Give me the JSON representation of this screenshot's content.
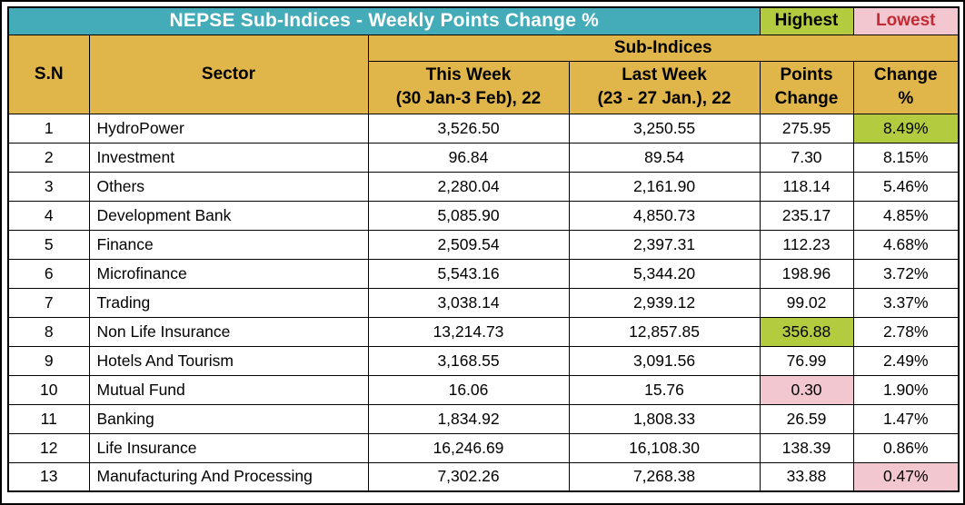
{
  "title": "NEPSE Sub-Indices - Weekly Points Change %",
  "legend": {
    "highest": "Highest",
    "lowest": "Lowest"
  },
  "colors": {
    "title_bg": "#44ACB8",
    "title_text": "#FFFFFF",
    "header_bg": "#E0B64A",
    "highest_bg": "#B2CB3F",
    "lowest_bg": "#F3C7CF",
    "lowest_text": "#C32A33",
    "border": "#000000"
  },
  "table": {
    "headers": {
      "sn": "S.N",
      "sector": "Sector",
      "sub_indices": "Sub-Indices",
      "this_week_line1": "This Week",
      "this_week_line2": "(30 Jan-3 Feb), 22",
      "last_week_line1": "Last Week",
      "last_week_line2": "(23 - 27 Jan.), 22",
      "points_line1": "Points",
      "points_line2": "Change",
      "change_line1": "Change",
      "change_line2": "%"
    },
    "rows": [
      {
        "sn": "1",
        "sector": "HydroPower",
        "this_week": "3,526.50",
        "last_week": "3,250.55",
        "points_change": "275.95",
        "change_pct": "8.49%",
        "highlights": {
          "change_pct": "highest"
        }
      },
      {
        "sn": "2",
        "sector": "Investment",
        "this_week": "96.84",
        "last_week": "89.54",
        "points_change": "7.30",
        "change_pct": "8.15%"
      },
      {
        "sn": "3",
        "sector": "Others",
        "this_week": "2,280.04",
        "last_week": "2,161.90",
        "points_change": "118.14",
        "change_pct": "5.46%"
      },
      {
        "sn": "4",
        "sector": "Development Bank",
        "this_week": "5,085.90",
        "last_week": "4,850.73",
        "points_change": "235.17",
        "change_pct": "4.85%"
      },
      {
        "sn": "5",
        "sector": "Finance",
        "this_week": "2,509.54",
        "last_week": "2,397.31",
        "points_change": "112.23",
        "change_pct": "4.68%"
      },
      {
        "sn": "6",
        "sector": "Microfinance",
        "this_week": "5,543.16",
        "last_week": "5,344.20",
        "points_change": "198.96",
        "change_pct": "3.72%"
      },
      {
        "sn": "7",
        "sector": "Trading",
        "this_week": "3,038.14",
        "last_week": "2,939.12",
        "points_change": "99.02",
        "change_pct": "3.37%"
      },
      {
        "sn": "8",
        "sector": "Non Life Insurance",
        "this_week": "13,214.73",
        "last_week": "12,857.85",
        "points_change": "356.88",
        "change_pct": "2.78%",
        "highlights": {
          "points_change": "highest"
        }
      },
      {
        "sn": "9",
        "sector": "Hotels And Tourism",
        "this_week": "3,168.55",
        "last_week": "3,091.56",
        "points_change": "76.99",
        "change_pct": "2.49%"
      },
      {
        "sn": "10",
        "sector": "Mutual Fund",
        "this_week": "16.06",
        "last_week": "15.76",
        "points_change": "0.30",
        "change_pct": "1.90%",
        "highlights": {
          "points_change": "lowest"
        }
      },
      {
        "sn": "11",
        "sector": "Banking",
        "this_week": "1,834.92",
        "last_week": "1,808.33",
        "points_change": "26.59",
        "change_pct": "1.47%"
      },
      {
        "sn": "12",
        "sector": "Life Insurance",
        "this_week": "16,246.69",
        "last_week": "16,108.30",
        "points_change": "138.39",
        "change_pct": "0.86%"
      },
      {
        "sn": "13",
        "sector": "Manufacturing And Processing",
        "this_week": "7,302.26",
        "last_week": "7,268.38",
        "points_change": "33.88",
        "change_pct": "0.47%",
        "highlights": {
          "change_pct": "lowest"
        }
      }
    ]
  },
  "chart_data": {
    "type": "table",
    "title": "NEPSE Sub-Indices - Weekly Points Change %",
    "columns": [
      "S.N",
      "Sector",
      "This Week (30 Jan-3 Feb), 22",
      "Last Week (23 - 27 Jan.), 22",
      "Points Change",
      "Change %"
    ],
    "rows": [
      [
        1,
        "HydroPower",
        3526.5,
        3250.55,
        275.95,
        8.49
      ],
      [
        2,
        "Investment",
        96.84,
        89.54,
        7.3,
        8.15
      ],
      [
        3,
        "Others",
        2280.04,
        2161.9,
        118.14,
        5.46
      ],
      [
        4,
        "Development Bank",
        5085.9,
        4850.73,
        235.17,
        4.85
      ],
      [
        5,
        "Finance",
        2509.54,
        2397.31,
        112.23,
        4.68
      ],
      [
        6,
        "Microfinance",
        5543.16,
        5344.2,
        198.96,
        3.72
      ],
      [
        7,
        "Trading",
        3038.14,
        2939.12,
        99.02,
        3.37
      ],
      [
        8,
        "Non Life Insurance",
        13214.73,
        12857.85,
        356.88,
        2.78
      ],
      [
        9,
        "Hotels And Tourism",
        3168.55,
        3091.56,
        76.99,
        2.49
      ],
      [
        10,
        "Mutual Fund",
        16.06,
        15.76,
        0.3,
        1.9
      ],
      [
        11,
        "Banking",
        1834.92,
        1808.33,
        26.59,
        1.47
      ],
      [
        12,
        "Life Insurance",
        16246.69,
        16108.3,
        138.39,
        0.86
      ],
      [
        13,
        "Manufacturing And Processing",
        7302.26,
        7268.38,
        33.88,
        0.47
      ]
    ],
    "change_pct_unit": "%",
    "highlight_highest": {
      "change_pct": "HydroPower 8.49%",
      "points_change": "Non Life Insurance 356.88"
    },
    "highlight_lowest": {
      "points_change": "Mutual Fund 0.30",
      "change_pct": "Manufacturing And Processing 0.47%"
    }
  }
}
